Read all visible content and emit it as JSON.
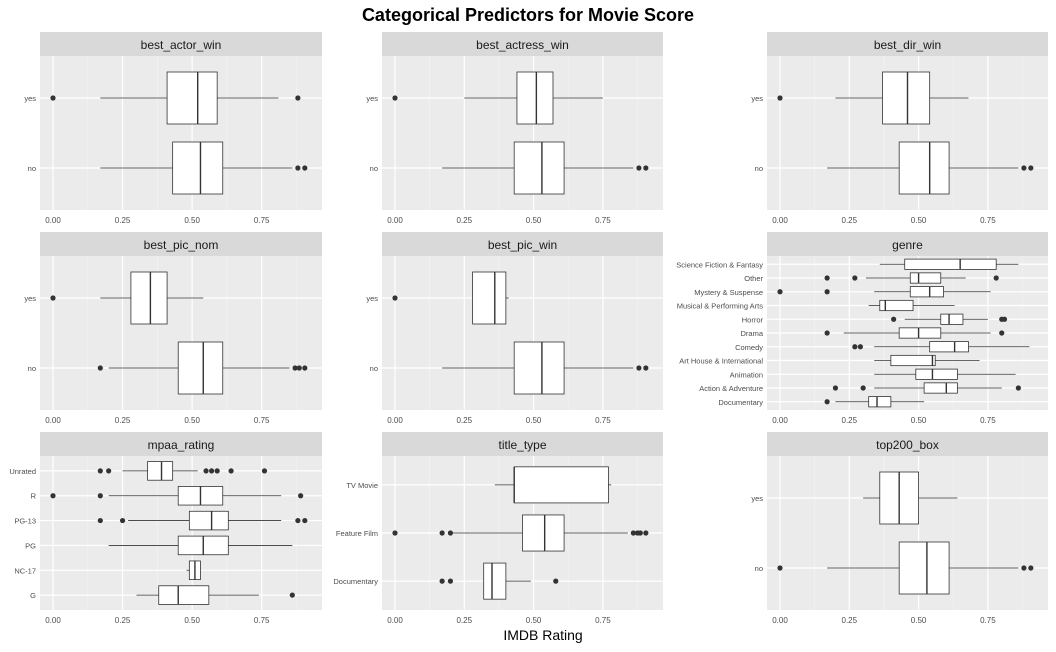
{
  "title": "Categorical Predictors for Movie Score",
  "chart_data": {
    "type": "boxplot",
    "title": "Categorical Predictors for Movie Score",
    "xlabel": "IMDB Rating",
    "xlim": [
      0,
      0.92
    ],
    "x_ticks": [
      "0.00",
      "0.25",
      "0.50",
      "0.75"
    ],
    "grid": true,
    "panels": [
      {
        "strip": "best_actor_win",
        "boxes": [
          {
            "label": "yes",
            "whisker_low": 0.17,
            "q1": 0.41,
            "median": 0.52,
            "q3": 0.59,
            "whisker_high": 0.81,
            "outliers": [
              0.0,
              0.88
            ]
          },
          {
            "label": "no",
            "whisker_low": 0.17,
            "q1": 0.43,
            "median": 0.53,
            "q3": 0.61,
            "whisker_high": 0.86,
            "outliers": [
              0.88,
              0.905
            ]
          }
        ]
      },
      {
        "strip": "best_actress_win",
        "boxes": [
          {
            "label": "yes",
            "whisker_low": 0.25,
            "q1": 0.44,
            "median": 0.51,
            "q3": 0.57,
            "whisker_high": 0.75,
            "outliers": [
              0.0
            ]
          },
          {
            "label": "no",
            "whisker_low": 0.17,
            "q1": 0.43,
            "median": 0.53,
            "q3": 0.61,
            "whisker_high": 0.86,
            "outliers": [
              0.88,
              0.905
            ]
          }
        ]
      },
      {
        "strip": "best_dir_win",
        "boxes": [
          {
            "label": "yes",
            "whisker_low": 0.2,
            "q1": 0.37,
            "median": 0.46,
            "q3": 0.54,
            "whisker_high": 0.68,
            "outliers": [
              0.0
            ]
          },
          {
            "label": "no",
            "whisker_low": 0.17,
            "q1": 0.43,
            "median": 0.54,
            "q3": 0.61,
            "whisker_high": 0.86,
            "outliers": [
              0.88,
              0.905
            ]
          }
        ]
      },
      {
        "strip": "best_pic_nom",
        "boxes": [
          {
            "label": "yes",
            "whisker_low": 0.17,
            "q1": 0.28,
            "median": 0.35,
            "q3": 0.41,
            "whisker_high": 0.54,
            "outliers": [
              0.0
            ]
          },
          {
            "label": "no",
            "whisker_low": 0.2,
            "q1": 0.45,
            "median": 0.54,
            "q3": 0.61,
            "whisker_high": 0.85,
            "outliers": [
              0.17,
              0.87,
              0.885,
              0.905
            ]
          }
        ]
      },
      {
        "strip": "best_pic_win",
        "boxes": [
          {
            "label": "yes",
            "whisker_low": 0.28,
            "q1": 0.28,
            "median": 0.36,
            "q3": 0.4,
            "whisker_high": 0.41,
            "outliers": [
              0.0
            ]
          },
          {
            "label": "no",
            "whisker_low": 0.17,
            "q1": 0.43,
            "median": 0.53,
            "q3": 0.61,
            "whisker_high": 0.86,
            "outliers": [
              0.88,
              0.905
            ]
          }
        ]
      },
      {
        "strip": "genre",
        "boxes": [
          {
            "label": "Science Fiction & Fantasy",
            "whisker_low": 0.36,
            "q1": 0.45,
            "median": 0.65,
            "q3": 0.78,
            "whisker_high": 0.86,
            "outliers": []
          },
          {
            "label": "Other",
            "whisker_low": 0.31,
            "q1": 0.47,
            "median": 0.5,
            "q3": 0.58,
            "whisker_high": 0.67,
            "outliers": [
              0.17,
              0.27,
              0.78
            ]
          },
          {
            "label": "Mystery & Suspense",
            "whisker_low": 0.34,
            "q1": 0.47,
            "median": 0.54,
            "q3": 0.59,
            "whisker_high": 0.76,
            "outliers": [
              0.0,
              0.17
            ]
          },
          {
            "label": "Musical & Performing Arts",
            "whisker_low": 0.32,
            "q1": 0.36,
            "median": 0.38,
            "q3": 0.48,
            "whisker_high": 0.63,
            "outliers": []
          },
          {
            "label": "Horror",
            "whisker_low": 0.45,
            "q1": 0.58,
            "median": 0.61,
            "q3": 0.66,
            "whisker_high": 0.75,
            "outliers": [
              0.41,
              0.8,
              0.81
            ]
          },
          {
            "label": "Drama",
            "whisker_low": 0.23,
            "q1": 0.43,
            "median": 0.5,
            "q3": 0.58,
            "whisker_high": 0.76,
            "outliers": [
              0.17,
              0.8
            ]
          },
          {
            "label": "Comedy",
            "whisker_low": 0.34,
            "q1": 0.54,
            "median": 0.63,
            "q3": 0.68,
            "whisker_high": 0.9,
            "outliers": [
              0.27,
              0.29
            ]
          },
          {
            "label": "Art House & International",
            "whisker_low": 0.34,
            "q1": 0.4,
            "median": 0.55,
            "q3": 0.56,
            "whisker_high": 0.72,
            "outliers": []
          },
          {
            "label": "Animation",
            "whisker_low": 0.34,
            "q1": 0.49,
            "median": 0.55,
            "q3": 0.64,
            "whisker_high": 0.85,
            "outliers": []
          },
          {
            "label": "Action & Adventure",
            "whisker_low": 0.34,
            "q1": 0.52,
            "median": 0.6,
            "q3": 0.64,
            "whisker_high": 0.8,
            "outliers": [
              0.2,
              0.3,
              0.86
            ]
          },
          {
            "label": "Documentary",
            "whisker_low": 0.2,
            "q1": 0.32,
            "median": 0.35,
            "q3": 0.4,
            "whisker_high": 0.52,
            "outliers": [
              0.17
            ]
          }
        ]
      },
      {
        "strip": "mpaa_rating",
        "boxes": [
          {
            "label": "Unrated",
            "whisker_low": 0.25,
            "q1": 0.34,
            "median": 0.39,
            "q3": 0.43,
            "whisker_high": 0.52,
            "outliers": [
              0.17,
              0.2,
              0.55,
              0.57,
              0.59,
              0.64,
              0.76
            ]
          },
          {
            "label": "R",
            "whisker_low": 0.2,
            "q1": 0.45,
            "median": 0.53,
            "q3": 0.61,
            "whisker_high": 0.82,
            "outliers": [
              0.0,
              0.17,
              0.89
            ]
          },
          {
            "label": "PG-13",
            "whisker_low": 0.27,
            "q1": 0.49,
            "median": 0.57,
            "q3": 0.63,
            "whisker_high": 0.82,
            "outliers": [
              0.17,
              0.25,
              0.88,
              0.905
            ]
          },
          {
            "label": "PG",
            "whisker_low": 0.2,
            "q1": 0.45,
            "median": 0.54,
            "q3": 0.63,
            "whisker_high": 0.86,
            "outliers": []
          },
          {
            "label": "NC-17",
            "whisker_low": 0.48,
            "q1": 0.49,
            "median": 0.51,
            "q3": 0.53,
            "whisker_high": 0.53,
            "outliers": []
          },
          {
            "label": "G",
            "whisker_low": 0.3,
            "q1": 0.38,
            "median": 0.45,
            "q3": 0.56,
            "whisker_high": 0.74,
            "outliers": [
              0.86
            ]
          }
        ]
      },
      {
        "strip": "title_type",
        "boxes": [
          {
            "label": "TV Movie",
            "whisker_low": 0.36,
            "q1": 0.43,
            "median": 0.43,
            "q3": 0.77,
            "whisker_high": 0.78,
            "outliers": []
          },
          {
            "label": "Feature Film",
            "whisker_low": 0.2,
            "q1": 0.46,
            "median": 0.54,
            "q3": 0.61,
            "whisker_high": 0.84,
            "outliers": [
              0.0,
              0.17,
              0.2,
              0.86,
              0.875,
              0.885,
              0.905
            ]
          },
          {
            "label": "Documentary",
            "whisker_low": 0.32,
            "q1": 0.32,
            "median": 0.35,
            "q3": 0.4,
            "whisker_high": 0.49,
            "outliers": [
              0.17,
              0.2,
              0.58
            ]
          }
        ]
      },
      {
        "strip": "top200_box",
        "boxes": [
          {
            "label": "yes",
            "whisker_low": 0.3,
            "q1": 0.36,
            "median": 0.43,
            "q3": 0.5,
            "whisker_high": 0.64,
            "outliers": []
          },
          {
            "label": "no",
            "whisker_low": 0.17,
            "q1": 0.43,
            "median": 0.53,
            "q3": 0.61,
            "whisker_high": 0.86,
            "outliers": [
              0.0,
              0.88,
              0.905
            ]
          }
        ]
      }
    ]
  }
}
